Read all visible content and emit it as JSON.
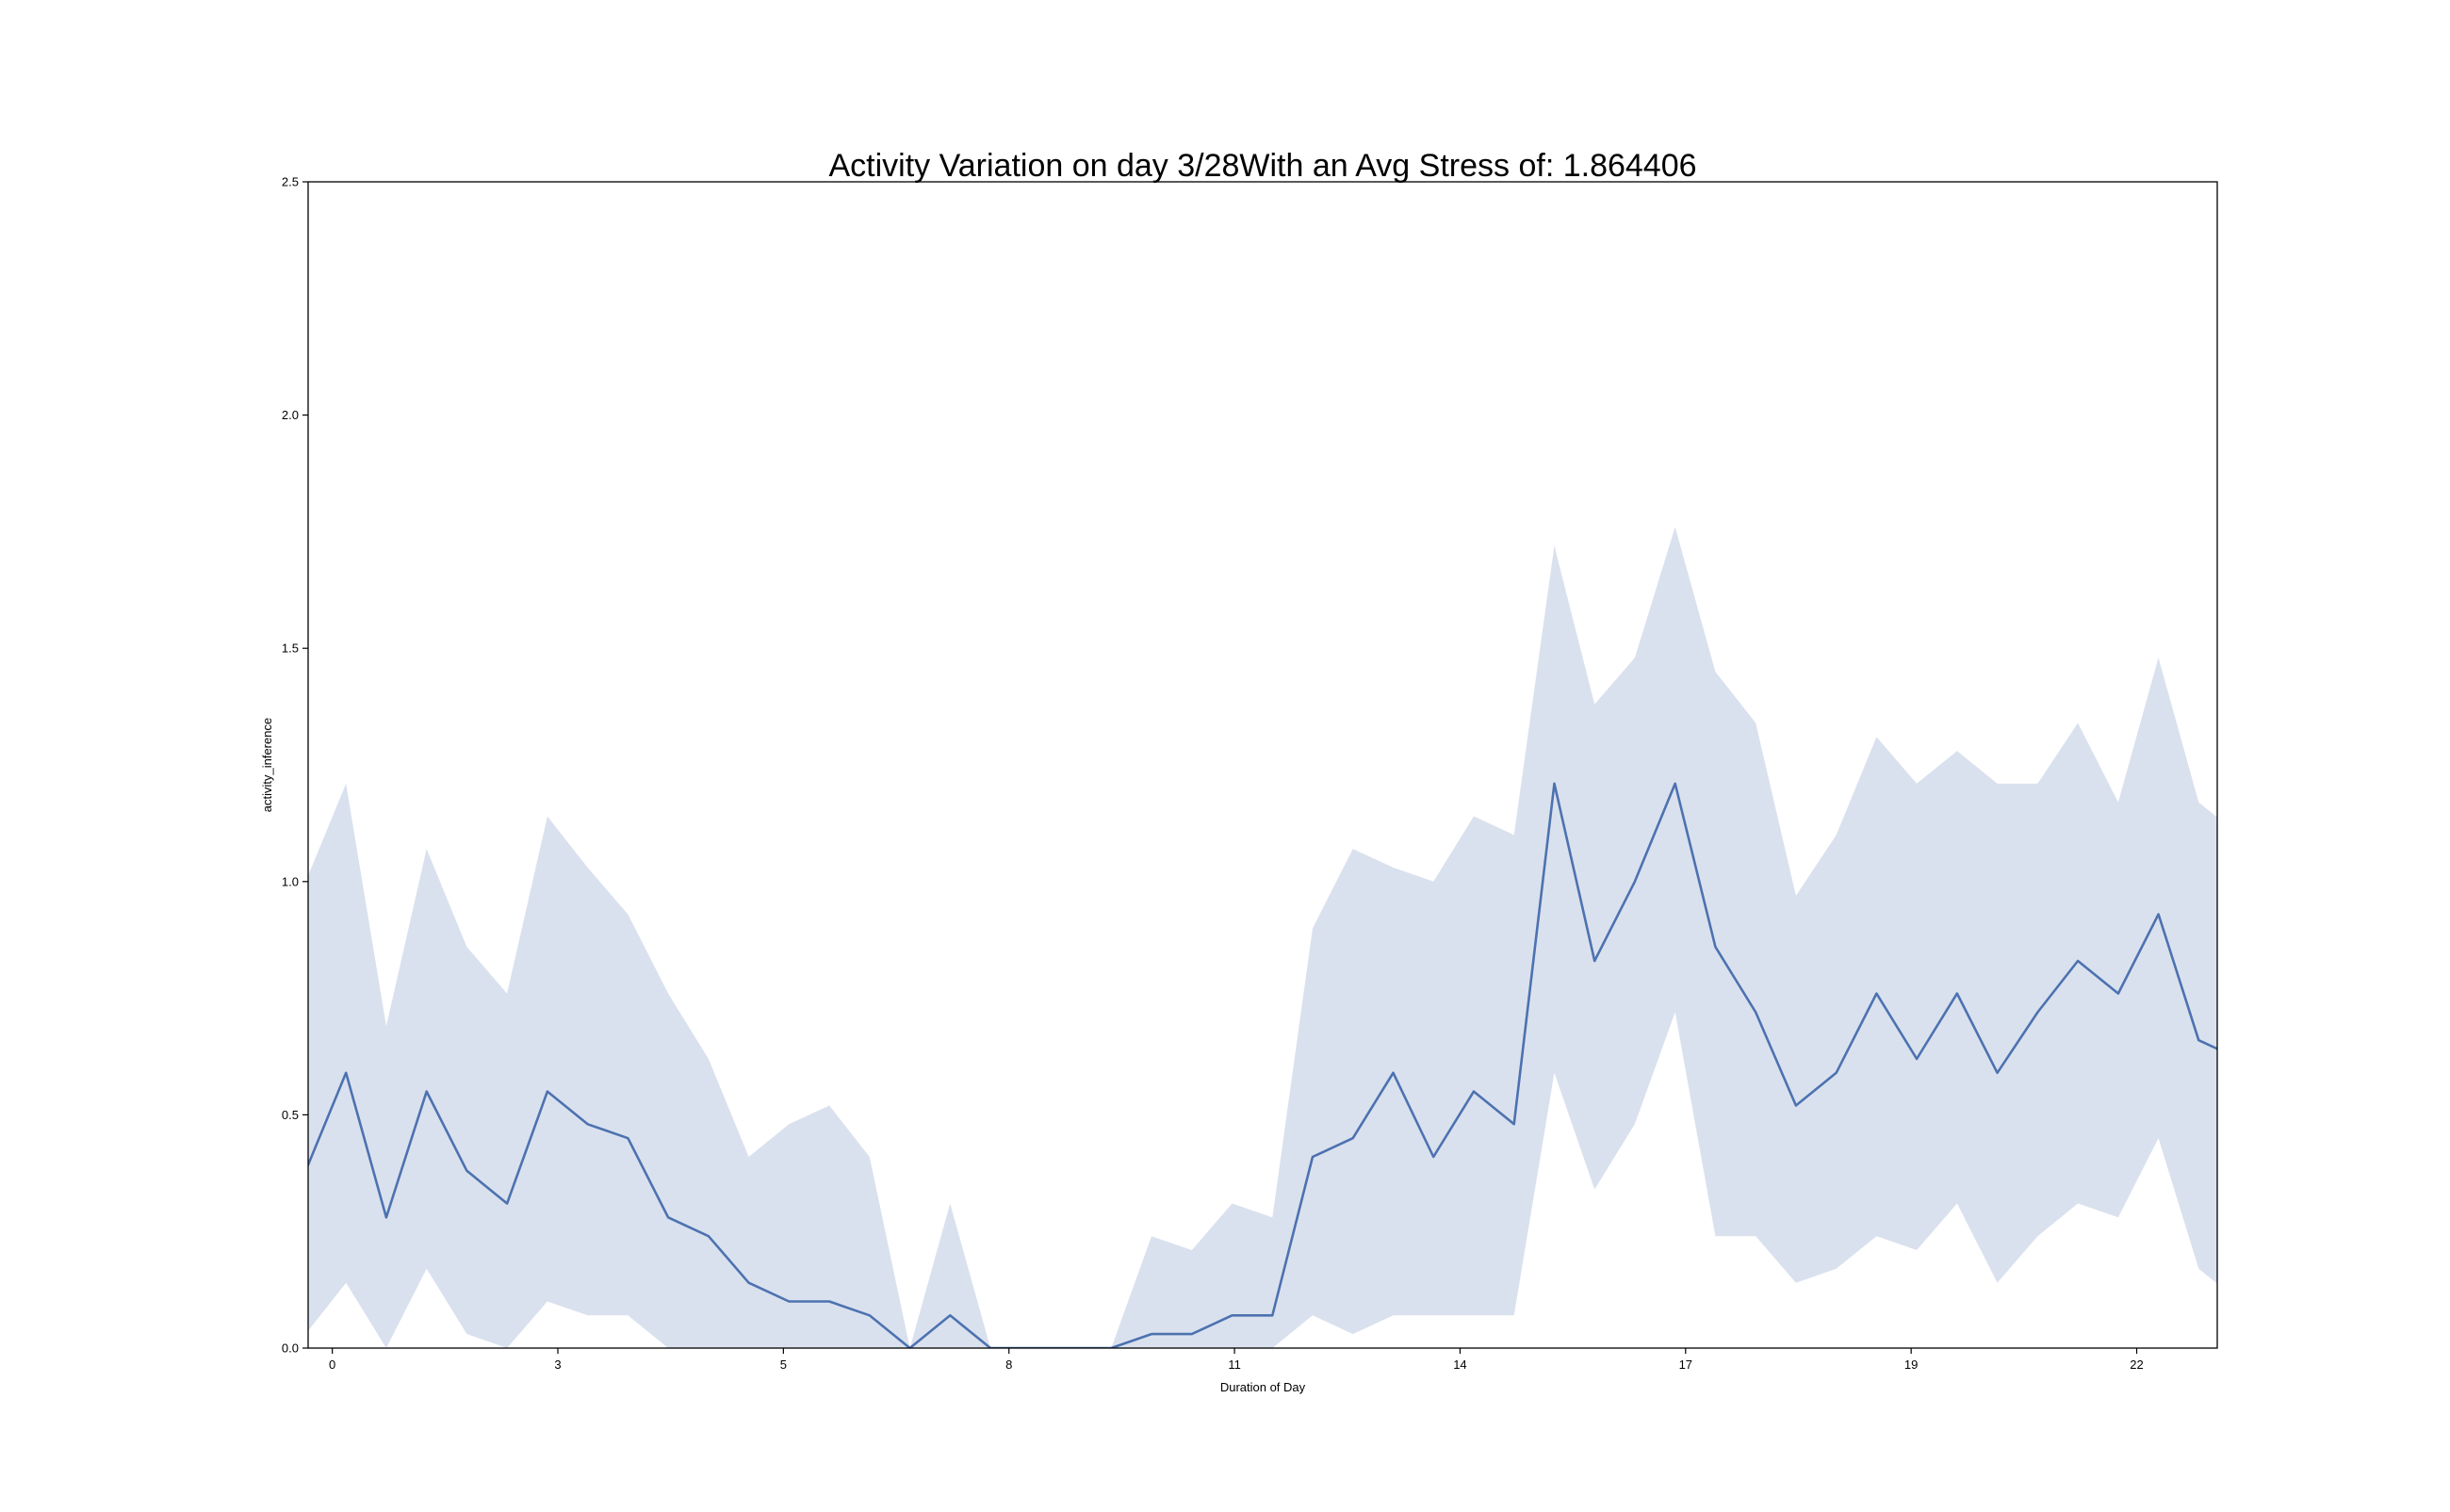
{
  "chart_data": {
    "type": "line",
    "title": "Activity Variation on day 3/28With an Avg Stress of: 1.864406",
    "xlabel": "Duration of Day",
    "ylabel": "activity_inference",
    "xlim": [
      -0.3,
      23.4
    ],
    "ylim": [
      0,
      2.5
    ],
    "grid": false,
    "legend": "none",
    "x_ticks": [
      {
        "value": 0,
        "label": "0"
      },
      {
        "value": 2.8,
        "label": "3"
      },
      {
        "value": 5.6,
        "label": "5"
      },
      {
        "value": 8.4,
        "label": "8"
      },
      {
        "value": 11.2,
        "label": "11"
      },
      {
        "value": 14.0,
        "label": "14"
      },
      {
        "value": 16.8,
        "label": "17"
      },
      {
        "value": 19.6,
        "label": "19"
      },
      {
        "value": 22.4,
        "label": "22"
      }
    ],
    "y_ticks": [
      {
        "value": 0,
        "label": "0.0"
      },
      {
        "value": 0.5,
        "label": "0.5"
      },
      {
        "value": 1.0,
        "label": "1.0"
      },
      {
        "value": 1.5,
        "label": "1.5"
      },
      {
        "value": 2.0,
        "label": "2.0"
      },
      {
        "value": 2.5,
        "label": "2.5"
      }
    ],
    "colors": {
      "line": "#4c72b0",
      "band": "#dae1ee"
    },
    "series": [
      {
        "x": [
          -0.33,
          0.17,
          0.67,
          1.17,
          1.67,
          2.17,
          2.67,
          3.17,
          3.67,
          4.17,
          4.67,
          5.17,
          5.67,
          6.17,
          6.67,
          7.17,
          7.67,
          8.17,
          8.67,
          9.17,
          9.67,
          10.17,
          10.67,
          11.17,
          11.67,
          12.17,
          12.67,
          13.17,
          13.67,
          14.17,
          14.67,
          15.17,
          15.67,
          16.17,
          16.67,
          17.17,
          17.67,
          18.17,
          18.67,
          19.17,
          19.67,
          20.17,
          20.67,
          21.17,
          21.67,
          22.17,
          22.67,
          23.17,
          23.67
        ],
        "y": [
          0.38,
          0.59,
          0.28,
          0.55,
          0.38,
          0.31,
          0.55,
          0.48,
          0.45,
          0.28,
          0.24,
          0.14,
          0.1,
          0.1,
          0.07,
          0.0,
          0.07,
          0.0,
          0.0,
          0.0,
          0.0,
          0.03,
          0.03,
          0.07,
          0.07,
          0.41,
          0.45,
          0.59,
          0.41,
          0.55,
          0.48,
          1.21,
          0.83,
          1.0,
          1.21,
          0.86,
          0.72,
          0.52,
          0.59,
          0.76,
          0.62,
          0.76,
          0.59,
          0.72,
          0.83,
          0.76,
          0.93,
          0.66,
          0.62
        ],
        "ci_low": [
          0.03,
          0.14,
          0.0,
          0.17,
          0.03,
          0.0,
          0.1,
          0.07,
          0.07,
          0.0,
          0.0,
          0.0,
          0.0,
          0.0,
          0.0,
          0.0,
          0.0,
          0.0,
          0.0,
          0.0,
          0.0,
          0.0,
          0.0,
          0.0,
          0.0,
          0.07,
          0.03,
          0.07,
          0.07,
          0.07,
          0.07,
          0.59,
          0.34,
          0.48,
          0.72,
          0.24,
          0.24,
          0.14,
          0.17,
          0.24,
          0.21,
          0.31,
          0.14,
          0.24,
          0.31,
          0.28,
          0.45,
          0.17,
          0.1
        ],
        "ci_high": [
          1.0,
          1.21,
          0.69,
          1.07,
          0.86,
          0.76,
          1.14,
          1.03,
          0.93,
          0.76,
          0.62,
          0.41,
          0.48,
          0.52,
          0.41,
          0.0,
          0.31,
          0.0,
          0.0,
          0.0,
          0.0,
          0.24,
          0.21,
          0.31,
          0.28,
          0.9,
          1.07,
          1.03,
          1.0,
          1.14,
          1.1,
          1.72,
          1.38,
          1.48,
          1.76,
          1.45,
          1.34,
          0.97,
          1.1,
          1.31,
          1.21,
          1.28,
          1.21,
          1.21,
          1.34,
          1.17,
          1.48,
          1.17,
          1.1
        ]
      }
    ]
  }
}
